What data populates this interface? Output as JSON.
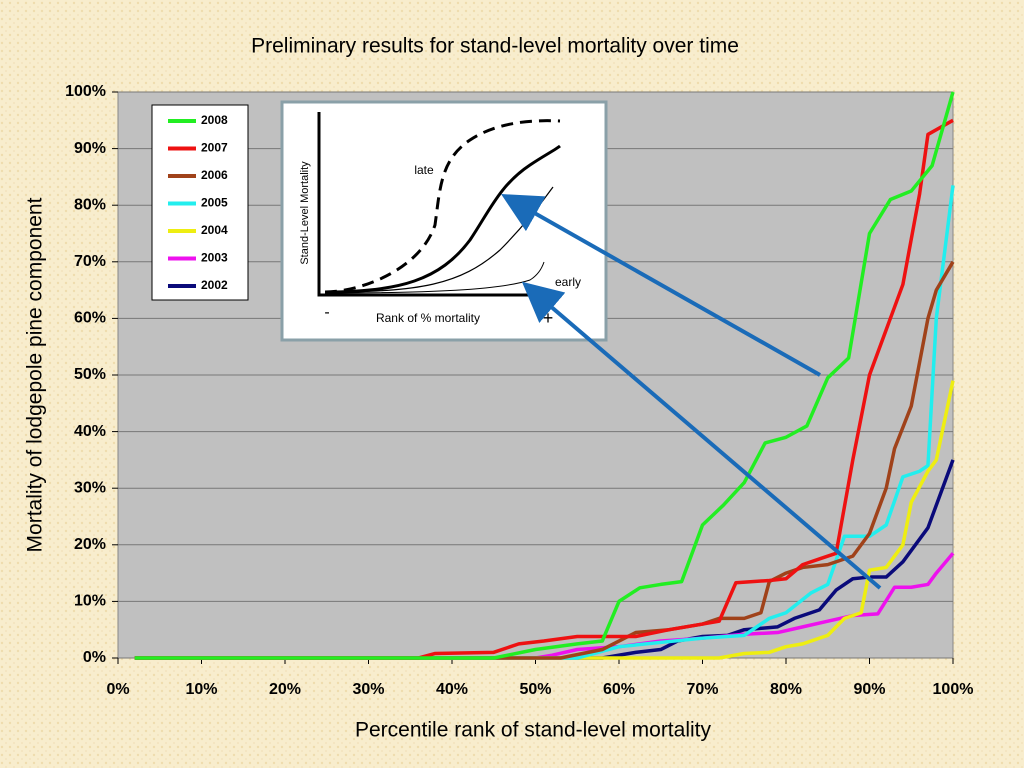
{
  "chart_data": {
    "type": "line",
    "title": "Preliminary results for stand-level mortality over time",
    "xlabel": "Percentile rank of stand-level mortality",
    "ylabel": "Mortality of lodgepole pine component",
    "xlim": [
      0,
      100
    ],
    "ylim": [
      0,
      100
    ],
    "grid": true,
    "legend": "upper left",
    "xticks": [
      {
        "value": 0,
        "label": "0%"
      },
      {
        "value": 10,
        "label": "10%"
      },
      {
        "value": 20,
        "label": "20%"
      },
      {
        "value": 30,
        "label": "30%"
      },
      {
        "value": 40,
        "label": "40%"
      },
      {
        "value": 50,
        "label": "50%"
      },
      {
        "value": 60,
        "label": "60%"
      },
      {
        "value": 70,
        "label": "70%"
      },
      {
        "value": 80,
        "label": "80%"
      },
      {
        "value": 90,
        "label": "90%"
      },
      {
        "value": 100,
        "label": "100%"
      }
    ],
    "yticks": [
      {
        "value": 0,
        "label": "0%"
      },
      {
        "value": 10,
        "label": "10%"
      },
      {
        "value": 20,
        "label": "20%"
      },
      {
        "value": 30,
        "label": "30%"
      },
      {
        "value": 40,
        "label": "40%"
      },
      {
        "value": 50,
        "label": "50%"
      },
      {
        "value": 60,
        "label": "60%"
      },
      {
        "value": 70,
        "label": "70%"
      },
      {
        "value": 80,
        "label": "80%"
      },
      {
        "value": 90,
        "label": "90%"
      },
      {
        "value": 100,
        "label": "100%"
      }
    ],
    "series": [
      {
        "name": "2008",
        "color": "#22ee22",
        "x": [
          2,
          45,
          50,
          55,
          58,
          60,
          62.5,
          65,
          67.5,
          70,
          72.5,
          75,
          77.5,
          80,
          82.5,
          85,
          87.5,
          90,
          92.5,
          95,
          97.5,
          100
        ],
        "values": [
          0,
          0,
          1.5,
          2.5,
          3,
          10,
          12.4,
          13,
          13.5,
          23.5,
          27,
          31,
          38,
          39,
          41,
          49.5,
          53,
          75,
          81,
          82.5,
          87,
          100
        ]
      },
      {
        "name": "2007",
        "color": "#ee1111",
        "x": [
          2,
          36,
          38,
          45,
          48,
          51,
          55,
          62,
          66,
          70,
          72,
          74,
          78,
          80,
          82,
          84,
          86,
          88,
          90,
          92,
          94,
          96,
          97,
          100
        ],
        "values": [
          0,
          0,
          0.8,
          1,
          2.5,
          3,
          3.8,
          3.8,
          5,
          6,
          6.5,
          13.3,
          13.7,
          14,
          16.5,
          17.5,
          18.5,
          35,
          50,
          58,
          66,
          82,
          92.5,
          95
        ]
      },
      {
        "name": "2006",
        "color": "#a0421a",
        "x": [
          2,
          53,
          58,
          62,
          66,
          70,
          72,
          75,
          77,
          78,
          80,
          82,
          85,
          88,
          90,
          92,
          93,
          95,
          97,
          98,
          100
        ],
        "values": [
          0,
          0,
          1.5,
          4.5,
          5,
          6,
          7,
          7,
          8,
          13.5,
          15,
          16,
          16.5,
          18,
          22,
          30,
          37,
          44.5,
          60,
          65,
          70
        ]
      },
      {
        "name": "2005",
        "color": "#22eeee",
        "x": [
          2,
          55,
          60,
          70,
          75,
          78,
          80,
          83,
          85,
          87,
          90,
          92,
          94,
          96,
          97,
          98,
          100
        ],
        "values": [
          0,
          0,
          2,
          3.5,
          4,
          7,
          8,
          11.5,
          13,
          21.5,
          21.5,
          23.5,
          32,
          33,
          34,
          60,
          83.5
        ]
      },
      {
        "name": "2004",
        "color": "#eeee11",
        "x": [
          2,
          72,
          75,
          78,
          80,
          82,
          85,
          87,
          89,
          90,
          92,
          94,
          95,
          97,
          98,
          100
        ],
        "values": [
          0,
          0,
          0.8,
          1,
          2,
          2.5,
          4,
          7,
          8,
          15.5,
          16,
          20,
          27.5,
          33,
          35,
          49
        ]
      },
      {
        "name": "2003",
        "color": "#ee11ee",
        "x": [
          2,
          50,
          52,
          55,
          60,
          65,
          70,
          75,
          79,
          82,
          85,
          88,
          91,
          93,
          95,
          97,
          98,
          100
        ],
        "values": [
          0,
          0,
          0.5,
          1.5,
          2,
          3,
          3.5,
          4.2,
          4.5,
          5.5,
          6.5,
          7.5,
          7.8,
          12.5,
          12.5,
          13,
          15,
          18.5
        ]
      },
      {
        "name": "2002",
        "color": "#0a0a7a",
        "x": [
          2,
          58,
          62,
          65,
          67,
          70,
          73,
          75,
          79,
          81,
          84,
          86,
          88,
          90,
          92,
          94,
          97,
          100
        ],
        "values": [
          0,
          0,
          1,
          1.5,
          3,
          3.8,
          4,
          5,
          5.5,
          7,
          8.5,
          12,
          14,
          14.3,
          14.3,
          17,
          23,
          35
        ]
      }
    ]
  },
  "inset": {
    "ylabel": "Stand-Level Mortality",
    "xlabel": "Rank of % mortality",
    "late": "late",
    "early": "early",
    "minus": "-",
    "plus": "+"
  }
}
